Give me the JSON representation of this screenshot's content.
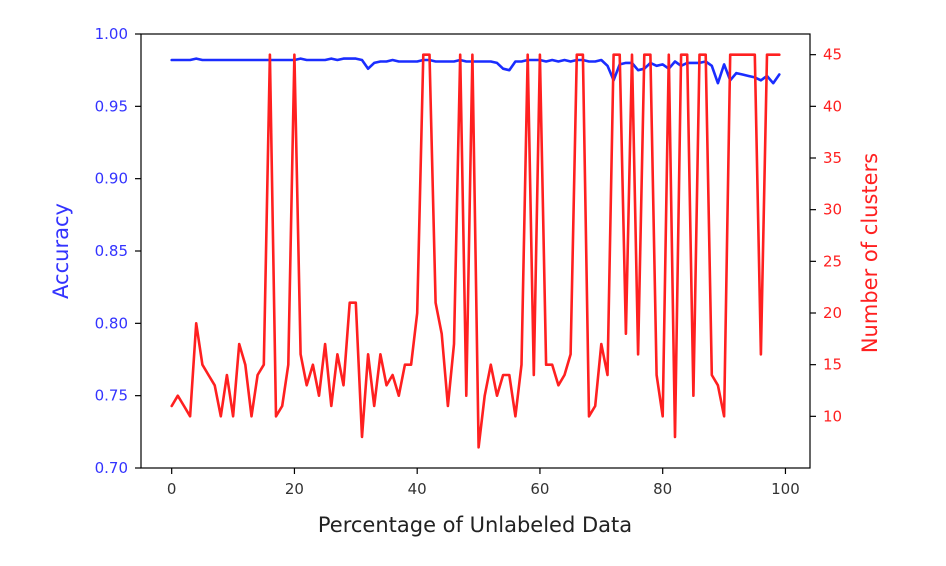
{
  "chart_data": {
    "type": "line",
    "xlabel": "Percentage of Unlabeled Data",
    "xlim": [
      -5,
      104
    ],
    "x_ticks": [
      0,
      20,
      40,
      60,
      80,
      100
    ],
    "x_tick_labels": [
      "0",
      "20",
      "40",
      "60",
      "80",
      "100"
    ],
    "colors": {
      "left": "#3333ff",
      "right": "#ff2020"
    },
    "left_axis": {
      "label": "Accuracy",
      "ylim": [
        0.7,
        1.0
      ],
      "ticks": [
        0.7,
        0.75,
        0.8,
        0.85,
        0.9,
        0.95,
        1.0
      ],
      "tick_labels": [
        "0.70",
        "0.75",
        "0.80",
        "0.85",
        "0.90",
        "0.95",
        "1.00"
      ],
      "color": "#3333ff"
    },
    "right_axis": {
      "label": "Number of clusters",
      "ylim": [
        5,
        47
      ],
      "ticks": [
        10,
        15,
        20,
        25,
        30,
        35,
        40,
        45
      ],
      "tick_labels": [
        "10",
        "15",
        "20",
        "25",
        "30",
        "35",
        "40",
        "45"
      ],
      "color": "#ff2020"
    },
    "series": [
      {
        "axis": "left",
        "color": "#1a2dff",
        "x": [
          0,
          1,
          2,
          3,
          4,
          5,
          6,
          7,
          8,
          9,
          10,
          11,
          12,
          13,
          14,
          15,
          16,
          17,
          18,
          19,
          20,
          21,
          22,
          23,
          24,
          25,
          26,
          27,
          28,
          29,
          30,
          31,
          32,
          33,
          34,
          35,
          36,
          37,
          38,
          39,
          40,
          41,
          42,
          43,
          44,
          45,
          46,
          47,
          48,
          49,
          50,
          51,
          52,
          53,
          54,
          55,
          56,
          57,
          58,
          59,
          60,
          61,
          62,
          63,
          64,
          65,
          66,
          67,
          68,
          69,
          70,
          71,
          72,
          73,
          74,
          75,
          76,
          77,
          78,
          79,
          80,
          81,
          82,
          83,
          84,
          85,
          86,
          87,
          88,
          89,
          90,
          91,
          92,
          93,
          94,
          95,
          96,
          97,
          98,
          99
        ],
        "y": [
          0.982,
          0.982,
          0.982,
          0.982,
          0.983,
          0.982,
          0.982,
          0.982,
          0.982,
          0.982,
          0.982,
          0.982,
          0.982,
          0.982,
          0.982,
          0.982,
          0.982,
          0.982,
          0.982,
          0.982,
          0.982,
          0.983,
          0.982,
          0.982,
          0.982,
          0.982,
          0.983,
          0.982,
          0.983,
          0.983,
          0.983,
          0.982,
          0.976,
          0.98,
          0.981,
          0.981,
          0.982,
          0.981,
          0.981,
          0.981,
          0.981,
          0.982,
          0.982,
          0.981,
          0.981,
          0.981,
          0.981,
          0.982,
          0.981,
          0.981,
          0.981,
          0.981,
          0.981,
          0.98,
          0.976,
          0.975,
          0.981,
          0.981,
          0.982,
          0.982,
          0.982,
          0.981,
          0.982,
          0.981,
          0.982,
          0.981,
          0.982,
          0.982,
          0.981,
          0.981,
          0.982,
          0.978,
          0.968,
          0.979,
          0.98,
          0.98,
          0.975,
          0.976,
          0.98,
          0.978,
          0.979,
          0.976,
          0.981,
          0.978,
          0.98,
          0.98,
          0.98,
          0.981,
          0.978,
          0.966,
          0.979,
          0.968,
          0.973,
          0.972,
          0.971,
          0.97,
          0.968,
          0.971,
          0.966,
          0.972
        ]
      },
      {
        "axis": "right",
        "color": "#ff2020",
        "x": [
          0,
          1,
          2,
          3,
          4,
          5,
          6,
          7,
          8,
          9,
          10,
          11,
          12,
          13,
          14,
          15,
          16,
          17,
          18,
          19,
          20,
          21,
          22,
          23,
          24,
          25,
          26,
          27,
          28,
          29,
          30,
          31,
          32,
          33,
          34,
          35,
          36,
          37,
          38,
          39,
          40,
          41,
          42,
          43,
          44,
          45,
          46,
          47,
          48,
          49,
          50,
          51,
          52,
          53,
          54,
          55,
          56,
          57,
          58,
          59,
          60,
          61,
          62,
          63,
          64,
          65,
          66,
          67,
          68,
          69,
          70,
          71,
          72,
          73,
          74,
          75,
          76,
          77,
          78,
          79,
          80,
          81,
          82,
          83,
          84,
          85,
          86,
          87,
          88,
          89,
          90,
          91,
          92,
          93,
          94,
          95,
          96,
          97,
          98,
          99
        ],
        "y": [
          11,
          12,
          11,
          10,
          19,
          15,
          14,
          13,
          10,
          14,
          10,
          17,
          15,
          10,
          14,
          15,
          45,
          10,
          11,
          15,
          45,
          16,
          13,
          15,
          12,
          17,
          11,
          16,
          13,
          21,
          21,
          8,
          16,
          11,
          16,
          13,
          14,
          12,
          15,
          15,
          20,
          45,
          45,
          21,
          18,
          11,
          17,
          45,
          12,
          45,
          7,
          12,
          15,
          12,
          14,
          14,
          10,
          15,
          45,
          14,
          45,
          15,
          15,
          13,
          14,
          16,
          45,
          45,
          10,
          11,
          17,
          14,
          45,
          45,
          18,
          45,
          16,
          45,
          45,
          14,
          10,
          45,
          8,
          45,
          45,
          12,
          45,
          45,
          14,
          13,
          10,
          45,
          45,
          45,
          45,
          45,
          16,
          45,
          45,
          45
        ]
      }
    ]
  }
}
